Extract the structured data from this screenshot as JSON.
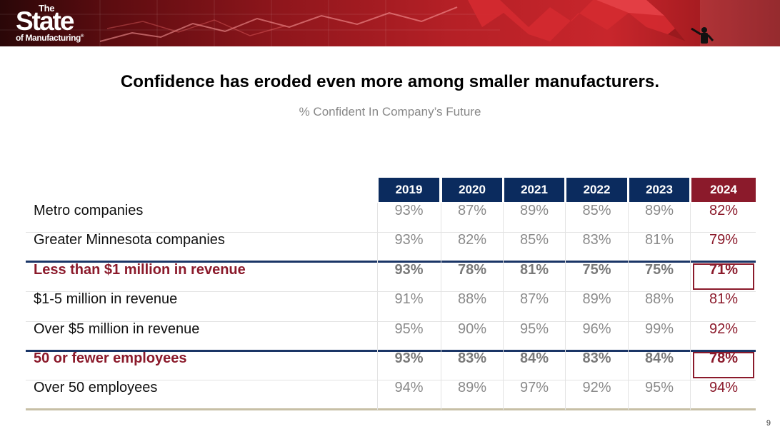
{
  "brand": {
    "logo_the": "The",
    "logo_state": "State",
    "logo_mfg": "of Manufacturing",
    "logo_mark": "®"
  },
  "title": "Confidence has eroded even more among smaller manufacturers.",
  "subtitle": "% Confident In Company’s Future",
  "page_number": "9",
  "colors": {
    "navy": "#0b2b5e",
    "accent_red": "#8b1a2b",
    "muted_value": "#8a8a8a",
    "banner_red": "#b52026"
  },
  "chart_data": {
    "type": "table",
    "title": "Confidence has eroded even more among smaller manufacturers.",
    "subtitle": "% Confident In Company’s Future",
    "columns": [
      "2019",
      "2020",
      "2021",
      "2022",
      "2023",
      "2024"
    ],
    "highlight_column": "2024",
    "rows": [
      {
        "label": "Metro companies",
        "values": [
          "93%",
          "87%",
          "89%",
          "85%",
          "89%",
          "82%"
        ],
        "highlight": false
      },
      {
        "label": "Greater Minnesota companies",
        "values": [
          "93%",
          "82%",
          "85%",
          "83%",
          "81%",
          "79%"
        ],
        "highlight": false
      },
      {
        "label": "Less than $1 million in revenue",
        "values": [
          "93%",
          "78%",
          "81%",
          "75%",
          "75%",
          "71%"
        ],
        "highlight": true
      },
      {
        "label": "$1-5 million in revenue",
        "values": [
          "91%",
          "88%",
          "87%",
          "89%",
          "88%",
          "81%"
        ],
        "highlight": false
      },
      {
        "label": "Over $5 million in revenue",
        "values": [
          "95%",
          "90%",
          "95%",
          "96%",
          "99%",
          "92%"
        ],
        "highlight": false
      },
      {
        "label": "50 or fewer employees",
        "values": [
          "93%",
          "83%",
          "84%",
          "83%",
          "84%",
          "78%"
        ],
        "highlight": true
      },
      {
        "label": "Over 50 employees",
        "values": [
          "94%",
          "89%",
          "97%",
          "92%",
          "95%",
          "94%"
        ],
        "highlight": false
      }
    ],
    "group_separators_after_row": [
      1,
      4
    ]
  }
}
